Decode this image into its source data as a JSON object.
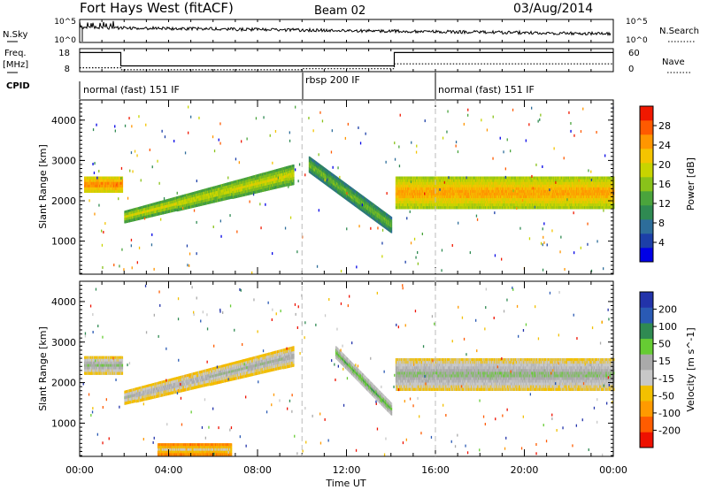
{
  "header": {
    "station": "Fort Hays West (fitACF)",
    "beam": "Beam 02",
    "date": "03/Aug/2014"
  },
  "noise_panel": {
    "left_label": "N.Sky",
    "right_label": "N.Search",
    "left_ticks": [
      "10^5",
      "10^0"
    ],
    "right_ticks": [
      "10^5",
      "10^0"
    ]
  },
  "freq_panel": {
    "left_label_line1": "Freq.",
    "left_label_line2": "[MHz]",
    "right_label": "Nave",
    "left_ticks": [
      "18",
      "8"
    ],
    "right_ticks": [
      "60",
      "0"
    ],
    "freq_steps": [
      [
        0,
        17.8
      ],
      [
        1.85,
        17.8
      ],
      [
        1.85,
        9.4
      ],
      [
        14.15,
        9.4
      ],
      [
        14.15,
        17.8
      ],
      [
        24,
        17.8
      ]
    ],
    "nave_steps": [
      [
        0,
        12
      ],
      [
        1.85,
        12
      ],
      [
        1.85,
        6
      ],
      [
        10,
        6
      ],
      [
        10,
        9
      ],
      [
        14.15,
        9
      ],
      [
        14.15,
        24
      ],
      [
        24,
        24
      ]
    ]
  },
  "cpid_panel": {
    "label": "CPID",
    "segments": [
      {
        "start": 0,
        "end": 10,
        "text": "normal (fast) 151 IF"
      },
      {
        "start": 10,
        "end": 16,
        "text": "rbsp 200 IF"
      },
      {
        "start": 16,
        "end": 24,
        "text": "normal (fast) 151 IF"
      }
    ]
  },
  "power_panel": {
    "ylabel": "Slant Range [km]",
    "colorbar_label": "Power [dB]",
    "colorbar_ticks": [
      "28",
      "24",
      "20",
      "16",
      "12",
      "8",
      "4"
    ],
    "colors": [
      "#0000e6",
      "#1c3fa8",
      "#2d6d9a",
      "#2f8a52",
      "#4aa43c",
      "#89c21a",
      "#c8d400",
      "#f4c400",
      "#ff9600",
      "#ff5a00",
      "#f01800"
    ]
  },
  "velocity_panel": {
    "ylabel": "Slant Range [km]",
    "colorbar_label": "Velocity [m s^-1]",
    "colorbar_ticks": [
      "200",
      "100",
      "50",
      "15",
      "-15",
      "-50",
      "-100",
      "-200"
    ],
    "colors": [
      "#2233aa",
      "#2a5ab4",
      "#2f8a52",
      "#66cc33",
      "#aaaaaa",
      "#c8c8c8",
      "#f2c000",
      "#ff9a00",
      "#ff5c00",
      "#ee1100"
    ]
  },
  "y_ticks": [
    "4000",
    "3000",
    "2000",
    "1000"
  ],
  "x_axis": {
    "label": "Time UT",
    "ticks": [
      "00:00",
      "04:00",
      "08:00",
      "12:00",
      "16:00",
      "20:00",
      "00:00"
    ]
  },
  "chart_data": {
    "type": "heatmap",
    "title": "Fort Hays West (fitACF)  Beam 02  03/Aug/2014",
    "xlabel": "Time UT",
    "ylabel": "Slant Range [km]",
    "xlim_hours": [
      0,
      24
    ],
    "ylim_km": [
      180,
      4500
    ],
    "x_ticks": [
      "00:00",
      "04:00",
      "08:00",
      "12:00",
      "16:00",
      "20:00",
      "00:00"
    ],
    "y_ticks": [
      1000,
      2000,
      3000,
      4000
    ],
    "panels": [
      {
        "name": "Power",
        "unit": "dB",
        "colorbar_range": [
          0,
          30
        ],
        "colorbar_ticks": [
          4,
          8,
          12,
          16,
          20,
          24,
          28
        ],
        "scatter_bands": [
          {
            "t": [
              0.2,
              1.9
            ],
            "range_km": [
              2200,
              2600
            ],
            "value": 22
          },
          {
            "t": [
              2.0,
              9.6
            ],
            "range_km_start": [
              1450,
              1750
            ],
            "range_km_end": [
              2400,
              2900
            ],
            "value": 16
          },
          {
            "t": [
              10.3,
              14.0
            ],
            "range_km_start": [
              2700,
              3100
            ],
            "range_km_end": [
              1200,
              1600
            ],
            "value": 12
          },
          {
            "t": [
              14.2,
              24.0
            ],
            "range_km": [
              1800,
              2600
            ],
            "value": 20
          }
        ]
      },
      {
        "name": "Velocity",
        "unit": "m s^-1",
        "colorbar_range": [
          -200,
          200
        ],
        "colorbar_ticks": [
          200,
          100,
          50,
          15,
          -15,
          -50,
          -100,
          -200
        ],
        "scatter_bands": [
          {
            "t": [
              0.2,
              1.9
            ],
            "range_km": [
              2200,
              2650
            ],
            "value": 0
          },
          {
            "t": [
              2.0,
              9.6
            ],
            "range_km_start": [
              1450,
              1800
            ],
            "range_km_end": [
              2400,
              2900
            ],
            "value": -10
          },
          {
            "t": [
              11.5,
              14.0
            ],
            "range_km_start": [
              2600,
              2900
            ],
            "range_km_end": [
              1200,
              1500
            ],
            "value": 40
          },
          {
            "t": [
              14.2,
              24.0
            ],
            "range_km": [
              1800,
              2600
            ],
            "value": 0
          },
          {
            "t": [
              3.5,
              6.8
            ],
            "range_km": [
              200,
              500
            ],
            "value": -60
          }
        ]
      }
    ]
  }
}
